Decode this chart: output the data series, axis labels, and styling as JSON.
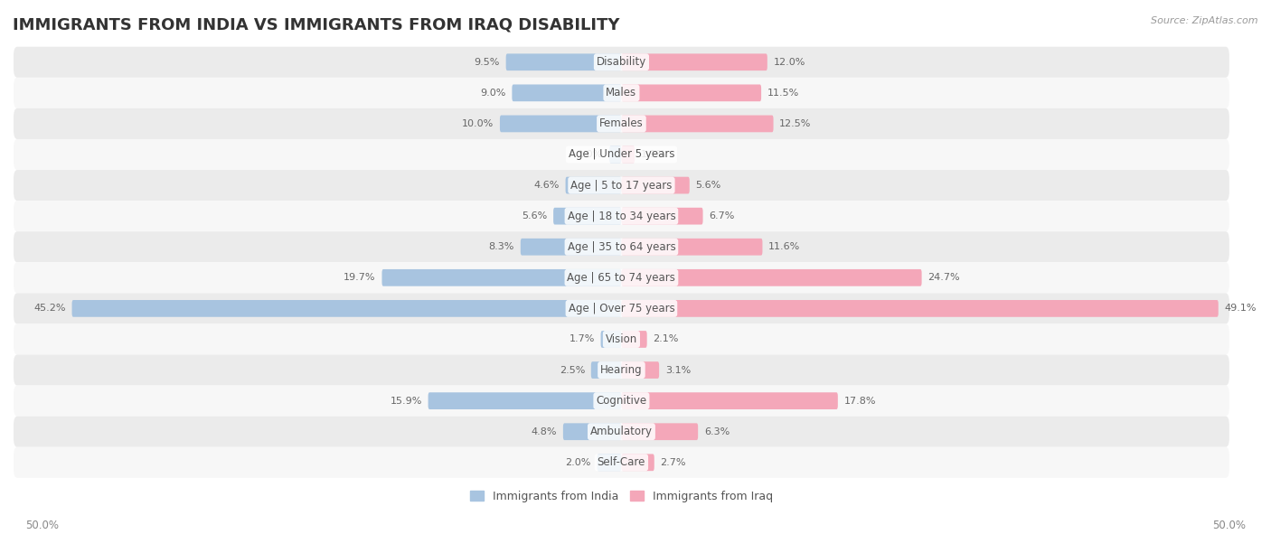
{
  "title": "IMMIGRANTS FROM INDIA VS IMMIGRANTS FROM IRAQ DISABILITY",
  "source": "Source: ZipAtlas.com",
  "categories": [
    "Disability",
    "Males",
    "Females",
    "Age | Under 5 years",
    "Age | 5 to 17 years",
    "Age | 18 to 34 years",
    "Age | 35 to 64 years",
    "Age | 65 to 74 years",
    "Age | Over 75 years",
    "Vision",
    "Hearing",
    "Cognitive",
    "Ambulatory",
    "Self-Care"
  ],
  "india_values": [
    9.5,
    9.0,
    10.0,
    1.0,
    4.6,
    5.6,
    8.3,
    19.7,
    45.2,
    1.7,
    2.5,
    15.9,
    4.8,
    2.0
  ],
  "iraq_values": [
    12.0,
    11.5,
    12.5,
    1.1,
    5.6,
    6.7,
    11.6,
    24.7,
    49.1,
    2.1,
    3.1,
    17.8,
    6.3,
    2.7
  ],
  "india_color": "#a8c4e0",
  "iraq_color": "#f4a7b9",
  "india_label": "Immigrants from India",
  "iraq_label": "Immigrants from Iraq",
  "bar_height": 0.55,
  "xlim": 50.0,
  "bg_color": "#ffffff",
  "row_colors": [
    "#ebebeb",
    "#f7f7f7"
  ],
  "title_fontsize": 13,
  "label_fontsize": 8.5,
  "value_fontsize": 8,
  "axis_tick_fontsize": 8.5,
  "legend_fontsize": 9
}
